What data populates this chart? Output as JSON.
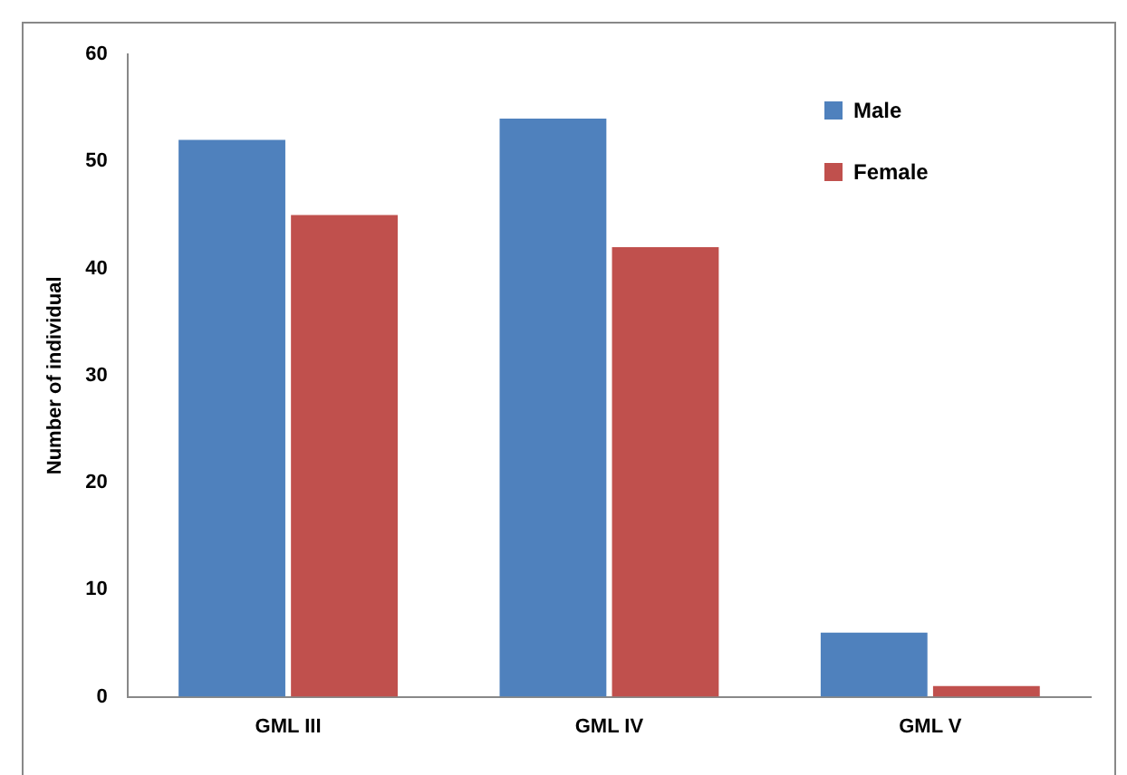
{
  "chart_data": {
    "type": "bar",
    "ylabel": "Number of individual",
    "categories": [
      "GML III",
      "GML IV",
      "GML V"
    ],
    "series": [
      {
        "name": "Male",
        "color": "#4f81bd",
        "values": [
          52,
          54,
          6
        ]
      },
      {
        "name": "Female",
        "color": "#c0504d",
        "values": [
          45,
          42,
          1
        ]
      }
    ],
    "ylim": [
      0,
      60
    ],
    "yticks": [
      0,
      10,
      20,
      30,
      40,
      50,
      60
    ],
    "grid": false,
    "legend": "top right"
  }
}
